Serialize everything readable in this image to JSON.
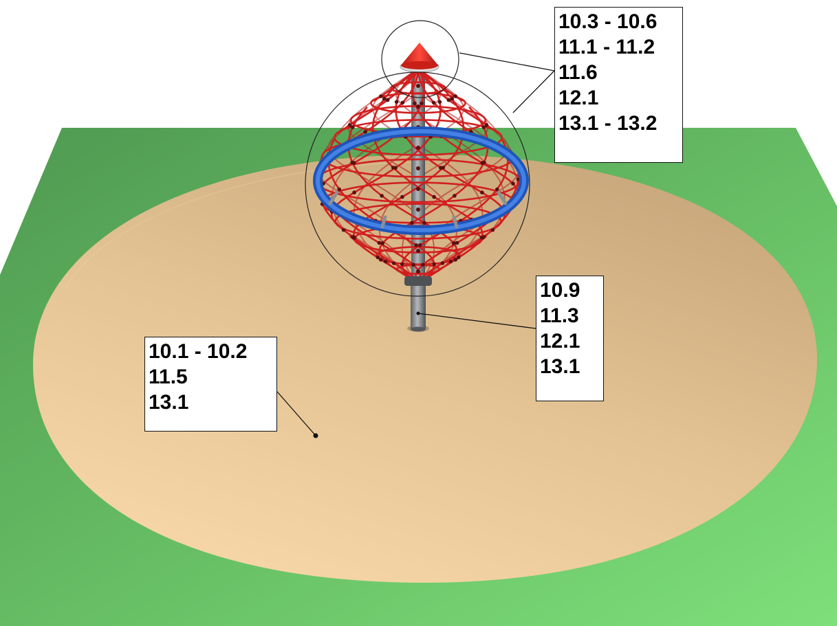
{
  "callouts": {
    "top": {
      "lines": [
        "10.3 - 10.6",
        "11.1 - 11.2",
        "11.6",
        "12.1",
        "13.1 - 13.2"
      ]
    },
    "mid": {
      "lines": [
        "10.9",
        "11.3",
        "12.1",
        "13.1"
      ]
    },
    "left": {
      "lines": [
        "10.1 - 10.2",
        "11.5",
        "13.1"
      ]
    }
  },
  "colors": {
    "grass": "#6cc86a",
    "grass_dark": "#4f9a52",
    "sand": "#f2cfa0",
    "sand_shadow": "#c9a97c",
    "net_rope": "#c81e1e",
    "ring": "#2a6ad8",
    "pole": "#8f9396",
    "cap": "#dd2a22"
  },
  "icons": {
    "net": "rope-net-cone-shape",
    "cap": "red-cone-cap-shape",
    "pole": "steel-pole-shape",
    "ring": "blue-ring-shape"
  }
}
